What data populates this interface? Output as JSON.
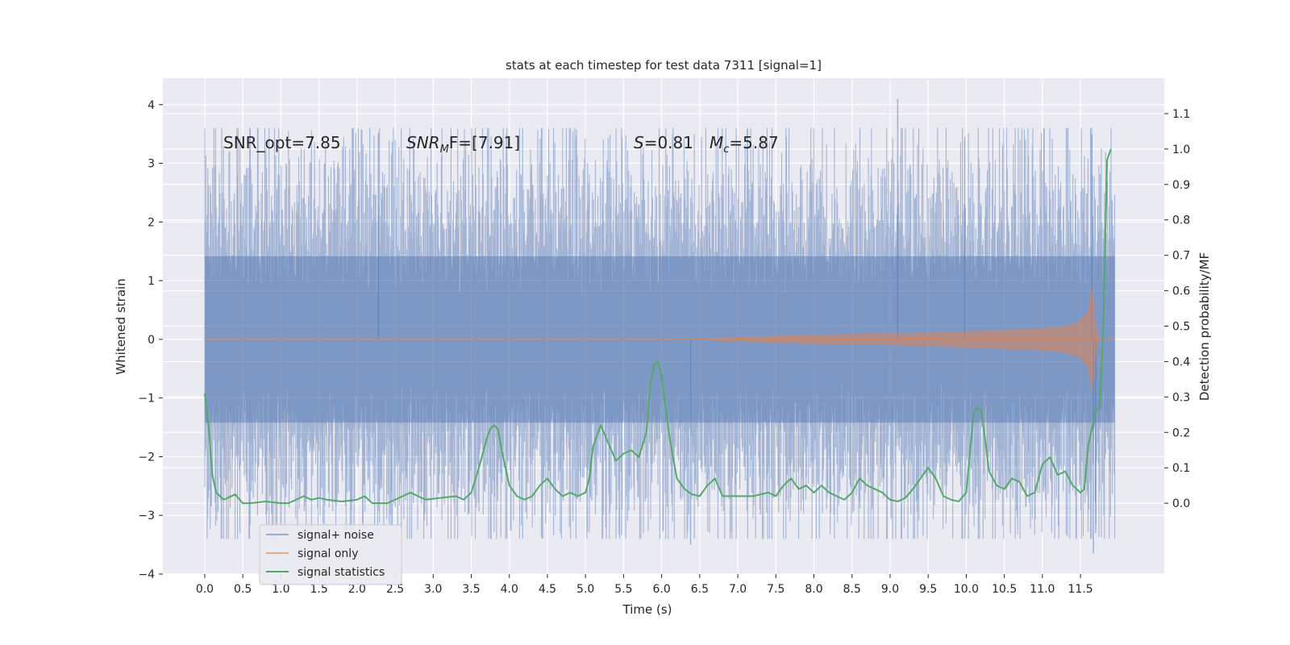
{
  "chart_data": {
    "type": "line",
    "title": "stats at each timestep for test data 7311 [signal=1]",
    "xlabel": "Time (s)",
    "ylabel_left": "Whitened strain",
    "ylabel_right": "Detection probability/MF",
    "xlim": [
      -0.55,
      12.6
    ],
    "ylim_left": [
      -4.0,
      4.45
    ],
    "ylim_right": [
      -0.2,
      1.2
    ],
    "x_ticks": [
      "0.0",
      "0.5",
      "1.0",
      "1.5",
      "2.0",
      "2.5",
      "3.0",
      "3.5",
      "4.0",
      "4.5",
      "5.0",
      "5.5",
      "6.0",
      "6.5",
      "7.0",
      "7.5",
      "8.0",
      "8.5",
      "9.0",
      "9.5",
      "10.0",
      "10.5",
      "11.0",
      "11.5"
    ],
    "y_ticks_left": [
      "−4",
      "−3",
      "−2",
      "−1",
      "0",
      "1",
      "2",
      "3",
      "4"
    ],
    "y_ticks_right": [
      "0.0",
      "0.1",
      "0.2",
      "0.3",
      "0.4",
      "0.5",
      "0.6",
      "0.7",
      "0.8",
      "0.9",
      "1.0",
      "1.1"
    ],
    "grid": true,
    "legend_position": "lower-left",
    "annotations": {
      "snr_opt": "SNR_opt=7.85",
      "snr_mf_main": "SNR",
      "snr_mf_sub": "M",
      "snr_mf_rest": "F=[7.91]",
      "s_main": "S",
      "s_rest": "=0.81",
      "mc_main": "M",
      "mc_sub": "c",
      "mc_rest": "=5.87"
    },
    "series": [
      {
        "name": "signal+ noise",
        "color": "#4c72b0",
        "axis": "left",
        "x_range": [
          0.0,
          11.95
        ],
        "envelope": "noise band: typical |y| ~1.4, peaks to ~3.5, max 4.1 at t=9.1, min -3.65 at t=11.67"
      },
      {
        "name": "signal only",
        "color": "#dd8452",
        "axis": "left",
        "x": [
          0.0,
          6.0,
          6.5,
          7.0,
          7.5,
          8.0,
          8.5,
          9.0,
          9.5,
          10.0,
          10.5,
          11.0,
          11.3,
          11.5,
          11.6,
          11.65,
          11.68,
          11.7,
          11.75,
          11.95
        ],
        "amplitude": [
          0.0,
          0.0,
          0.01,
          0.04,
          0.06,
          0.08,
          0.09,
          0.1,
          0.12,
          0.14,
          0.16,
          0.19,
          0.23,
          0.32,
          0.5,
          0.9,
          0.6,
          0.25,
          0.0,
          0.0
        ]
      },
      {
        "name": "signal statistics",
        "color": "#55a868",
        "axis": "right",
        "x": [
          0.0,
          0.05,
          0.1,
          0.15,
          0.25,
          0.3,
          0.4,
          0.5,
          0.6,
          0.8,
          1.0,
          1.1,
          1.2,
          1.3,
          1.4,
          1.5,
          1.6,
          1.8,
          2.0,
          2.1,
          2.2,
          2.4,
          2.6,
          2.7,
          2.9,
          3.1,
          3.3,
          3.4,
          3.5,
          3.6,
          3.7,
          3.75,
          3.8,
          3.85,
          3.9,
          4.0,
          4.1,
          4.2,
          4.3,
          4.4,
          4.5,
          4.6,
          4.7,
          4.8,
          4.9,
          5.0,
          5.05,
          5.1,
          5.2,
          5.3,
          5.4,
          5.5,
          5.6,
          5.7,
          5.8,
          5.85,
          5.9,
          5.95,
          6.0,
          6.1,
          6.2,
          6.3,
          6.4,
          6.5,
          6.6,
          6.7,
          6.8,
          6.9,
          7.0,
          7.2,
          7.4,
          7.5,
          7.6,
          7.7,
          7.8,
          7.9,
          8.0,
          8.1,
          8.2,
          8.3,
          8.4,
          8.5,
          8.6,
          8.7,
          8.9,
          9.0,
          9.1,
          9.2,
          9.3,
          9.4,
          9.5,
          9.6,
          9.7,
          9.8,
          9.9,
          10.0,
          10.1,
          10.15,
          10.2,
          10.3,
          10.4,
          10.5,
          10.6,
          10.7,
          10.8,
          10.9,
          11.0,
          11.1,
          11.2,
          11.3,
          11.4,
          11.5,
          11.55,
          11.6,
          11.7,
          11.75,
          11.8,
          11.85,
          11.9
        ],
        "y": [
          0.31,
          0.22,
          0.08,
          0.03,
          0.01,
          0.015,
          0.025,
          0.0,
          0.0,
          0.005,
          0.0,
          0.0,
          0.01,
          0.02,
          0.01,
          0.015,
          0.01,
          0.005,
          0.01,
          0.02,
          0.0,
          0.0,
          0.02,
          0.03,
          0.01,
          0.015,
          0.02,
          0.01,
          0.03,
          0.1,
          0.18,
          0.21,
          0.22,
          0.21,
          0.15,
          0.05,
          0.02,
          0.01,
          0.02,
          0.05,
          0.07,
          0.04,
          0.02,
          0.03,
          0.02,
          0.03,
          0.07,
          0.16,
          0.22,
          0.17,
          0.12,
          0.14,
          0.15,
          0.13,
          0.2,
          0.33,
          0.39,
          0.4,
          0.36,
          0.19,
          0.07,
          0.04,
          0.025,
          0.02,
          0.05,
          0.07,
          0.02,
          0.02,
          0.02,
          0.02,
          0.03,
          0.02,
          0.05,
          0.07,
          0.04,
          0.05,
          0.03,
          0.05,
          0.03,
          0.02,
          0.01,
          0.03,
          0.07,
          0.05,
          0.03,
          0.01,
          0.005,
          0.015,
          0.04,
          0.07,
          0.1,
          0.07,
          0.02,
          0.01,
          0.005,
          0.03,
          0.26,
          0.27,
          0.26,
          0.09,
          0.05,
          0.04,
          0.07,
          0.06,
          0.02,
          0.03,
          0.11,
          0.13,
          0.08,
          0.09,
          0.05,
          0.03,
          0.04,
          0.16,
          0.26,
          0.27,
          0.5,
          0.97,
          1.0
        ]
      }
    ]
  }
}
